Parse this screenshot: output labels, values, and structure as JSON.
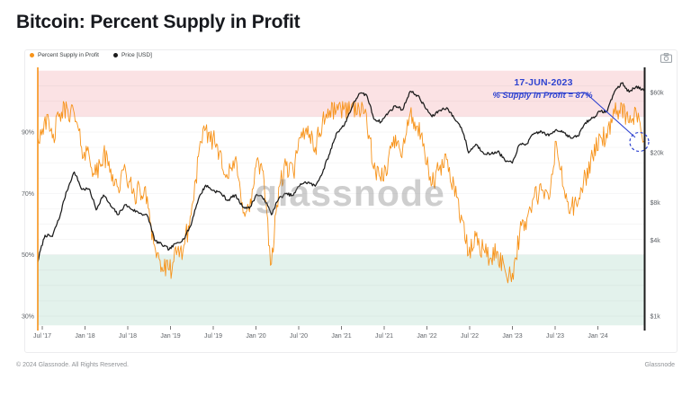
{
  "page": {
    "title": "Bitcoin: Percent Supply in Profit",
    "watermark": "glassnode",
    "footer_left": "© 2024 Glassnode. All Rights Reserved.",
    "footer_right": "Glassnode"
  },
  "legend": [
    {
      "label": "Percent Supply in Profit",
      "color": "#f7931a"
    },
    {
      "label": "Price [USD]",
      "color": "#1c1c1c"
    }
  ],
  "icons": {
    "camera": "camera-icon"
  },
  "annotation": {
    "date": "17-JUN-2023",
    "label": "% Supply in Profit = 87%",
    "color": "#2f43d0"
  },
  "chart_data": {
    "type": "line",
    "title": "Bitcoin: Percent Supply in Profit",
    "x_start": "2017-07",
    "x_end": "2024-06",
    "x_step": "1 month",
    "x_tick_labels": [
      "Jul '17",
      "Jan '18",
      "Jul '18",
      "Jan '19",
      "Jul '19",
      "Jan '20",
      "Jul '20",
      "Jan '21",
      "Jul '21",
      "Jan '22",
      "Jul '22",
      "Jan '23",
      "Jul '23",
      "Jan '24"
    ],
    "left_axis": {
      "label": "Percent Supply in Profit",
      "scale": "linear",
      "tick_labels": [
        "30%",
        "50%",
        "70%",
        "90%"
      ],
      "tick_values": [
        30,
        50,
        70,
        90
      ],
      "range": [
        27,
        110
      ],
      "axis_line_color": "#f7931a"
    },
    "right_axis": {
      "label": "Price [USD]",
      "scale": "log",
      "tick_labels": [
        "$1k",
        "$4k",
        "$8k",
        "$20k",
        "$60k"
      ],
      "tick_values": [
        1000,
        4000,
        8000,
        20000,
        60000
      ],
      "range": [
        900,
        90000
      ],
      "axis_line_color": "#1c1c1c"
    },
    "zones": [
      {
        "name": "high-profit-zone",
        "from_pct": 95,
        "to_pct": 110,
        "color": "#fbe2e4"
      },
      {
        "name": "low-profit-zone",
        "from_pct": 27,
        "to_pct": 50,
        "color": "#e3f2ec"
      }
    ],
    "grid": {
      "horizontal_step_pct": 5,
      "color": "rgba(120,120,130,0.10)"
    },
    "legend_position": "top-left",
    "series": [
      {
        "name": "Percent Supply in Profit",
        "axis": "left",
        "color": "#f7931a",
        "unit": "%",
        "values_monthly": [
          88,
          95,
          88,
          96,
          98,
          96,
          85,
          83,
          76,
          83,
          78,
          72,
          78,
          70,
          71,
          69,
          53,
          46,
          45,
          50,
          53,
          63,
          82,
          91,
          88,
          84,
          75,
          81,
          67,
          64,
          81,
          74,
          47,
          72,
          79,
          77,
          88,
          92,
          85,
          94,
          97,
          99,
          98,
          99,
          98,
          96,
          78,
          74,
          81,
          89,
          85,
          96,
          92,
          83,
          73,
          78,
          81,
          73,
          63,
          50,
          56,
          52,
          49,
          51,
          45,
          44,
          57,
          62,
          69,
          71,
          68,
          87,
          72,
          65,
          67,
          76,
          82,
          89,
          88,
          96,
          99,
          93,
          96,
          87
        ]
      },
      {
        "name": "Price [USD]",
        "axis": "right",
        "color": "#1c1c1c",
        "unit": "USD",
        "values_monthly": [
          2700,
          4400,
          4300,
          6100,
          9900,
          14000,
          10200,
          10300,
          7000,
          9200,
          7500,
          6400,
          7700,
          7000,
          6600,
          6300,
          4000,
          3700,
          3400,
          3800,
          4100,
          5300,
          8500,
          11000,
          10000,
          9600,
          8300,
          9200,
          7500,
          7200,
          9300,
          8600,
          6400,
          8600,
          9400,
          9100,
          11300,
          11600,
          10800,
          13800,
          19700,
          29000,
          33100,
          45200,
          58800,
          57700,
          37300,
          35000,
          41500,
          47100,
          43800,
          61300,
          57000,
          46200,
          38500,
          43200,
          45500,
          37700,
          31800,
          19900,
          23300,
          20000,
          19400,
          20500,
          17200,
          16500,
          23100,
          23500,
          28500,
          29300,
          27200,
          30500,
          29200,
          26000,
          27000,
          34500,
          37700,
          42300,
          42600,
          61200,
          71300,
          60600,
          67500,
          62000
        ]
      }
    ],
    "annotation_point": {
      "date": "17-JUN-2023",
      "value_pct": 87
    }
  }
}
